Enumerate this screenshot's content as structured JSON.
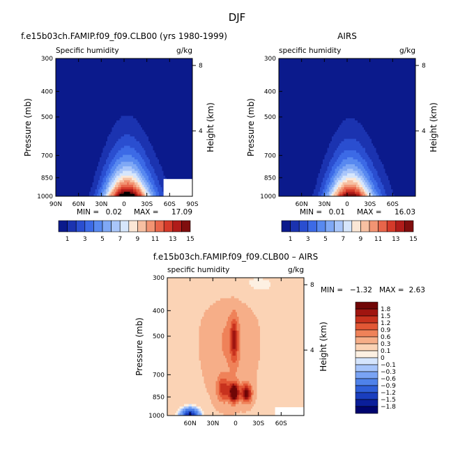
{
  "page_title": "DJF",
  "cb_colors": [
    "#0b1a8c",
    "#1b33b0",
    "#2a4ed0",
    "#3c6ae6",
    "#5889f0",
    "#7fa8f5",
    "#a9c6fa",
    "#d6e6fc",
    "#fbe7d6",
    "#f7c0a2",
    "#f29473",
    "#e8654a",
    "#d53a2a",
    "#b01c1a",
    "#800e0e"
  ],
  "diff_colors": [
    "#00046e",
    "#0a1e9a",
    "#1a3ebe",
    "#2f5fd8",
    "#4f82ea",
    "#79a3f4",
    "#a6c4fa",
    "#d5e5fd",
    "#fdf0e2",
    "#fbd3b5",
    "#f6ae88",
    "#ef8259",
    "#e25735",
    "#c8321e",
    "#a01510",
    "#700606"
  ],
  "chart_data": [
    {
      "type": "contour",
      "title": "f.e15b03ch.FAMIP.f09_f09.CLB00 (yrs 1980-1999)",
      "left_label": "Specific humidity",
      "right_label": "g/kg",
      "ylabel": "Pressure (mb)",
      "right_axis_label": "Height (km)",
      "x_tick_labels": [
        "90N",
        "60N",
        "30N",
        "0",
        "30S",
        "60S",
        "90S"
      ],
      "x_tick_values": [
        90,
        60,
        30,
        0,
        -30,
        -60,
        -90
      ],
      "xlim": [
        90,
        -90
      ],
      "y_tick_labels": [
        "300",
        "400",
        "500",
        "700",
        "850",
        "1000"
      ],
      "y_tick_values": [
        300,
        400,
        500,
        700,
        850,
        1000
      ],
      "ylim": [
        300,
        1000
      ],
      "y_scale": "log",
      "height_tick_labels": [
        "8",
        "4"
      ],
      "height_tick_values": [
        8,
        4
      ],
      "min_label": "MIN =",
      "min_value": "0.02",
      "max_label": "MAX =",
      "max_value": "17.09",
      "peak": 17.09,
      "levels": [
        1,
        2,
        3,
        4,
        5,
        6,
        7,
        8,
        9,
        10,
        11,
        12,
        13,
        14,
        15
      ],
      "colorbar_labels": [
        "1",
        "3",
        "5",
        "7",
        "9",
        "11",
        "13",
        "15"
      ]
    },
    {
      "type": "contour",
      "title": "AIRS",
      "left_label": "specific humidity",
      "right_label": "g/kg",
      "ylabel": "Pressure (mb)",
      "right_axis_label": "Height (km)",
      "x_tick_labels": [
        "60N",
        "30N",
        "0",
        "30S",
        "60S"
      ],
      "x_tick_values": [
        60,
        30,
        0,
        -30,
        -60
      ],
      "xlim": [
        90,
        -90
      ],
      "y_tick_labels": [
        "300",
        "400",
        "500",
        "700",
        "850",
        "1000"
      ],
      "y_tick_values": [
        300,
        400,
        500,
        700,
        850,
        1000
      ],
      "ylim": [
        300,
        1000
      ],
      "y_scale": "log",
      "height_tick_labels": [
        "8",
        "4"
      ],
      "height_tick_values": [
        8,
        4
      ],
      "min_label": "MIN =",
      "min_value": "0.01",
      "max_label": "MAX =",
      "max_value": "16.03",
      "peak": 16.03,
      "levels": [
        1,
        2,
        3,
        4,
        5,
        6,
        7,
        8,
        9,
        10,
        11,
        12,
        13,
        14,
        15
      ],
      "colorbar_labels": [
        "1",
        "3",
        "5",
        "7",
        "9",
        "11",
        "13",
        "15"
      ]
    },
    {
      "type": "contour",
      "title": "f.e15b03ch.FAMIP.f09_f09.CLB00 – AIRS",
      "left_label": "specific humidity",
      "right_label": "g/kg",
      "ylabel": "Pressure (mb)",
      "right_axis_label": "Height (km)",
      "x_tick_labels": [
        "60N",
        "30N",
        "0",
        "30S",
        "60S"
      ],
      "x_tick_values": [
        60,
        30,
        0,
        -30,
        -60
      ],
      "xlim": [
        90,
        -90
      ],
      "y_tick_labels": [
        "300",
        "400",
        "500",
        "700",
        "850",
        "1000"
      ],
      "y_tick_values": [
        300,
        400,
        500,
        700,
        850,
        1000
      ],
      "ylim": [
        300,
        1000
      ],
      "y_scale": "log",
      "height_tick_labels": [
        "8",
        "4"
      ],
      "height_tick_values": [
        8,
        4
      ],
      "min_label": "MIN =",
      "min_value": "−1.32",
      "max_label": "MAX =",
      "max_value": "2.63",
      "levels": [
        -1.8,
        -1.5,
        -1.2,
        -0.9,
        -0.6,
        -0.3,
        -0.1,
        0,
        0.1,
        0.3,
        0.6,
        0.9,
        1.2,
        1.5,
        1.8
      ],
      "colorbar_labels": [
        "1.8",
        "1.5",
        "1.2",
        "0.9",
        "0.6",
        "0.3",
        "0.1",
        "0",
        "−0.1",
        "−0.3",
        "−0.6",
        "−0.9",
        "−1.2",
        "−1.5",
        "−1.8"
      ]
    }
  ]
}
